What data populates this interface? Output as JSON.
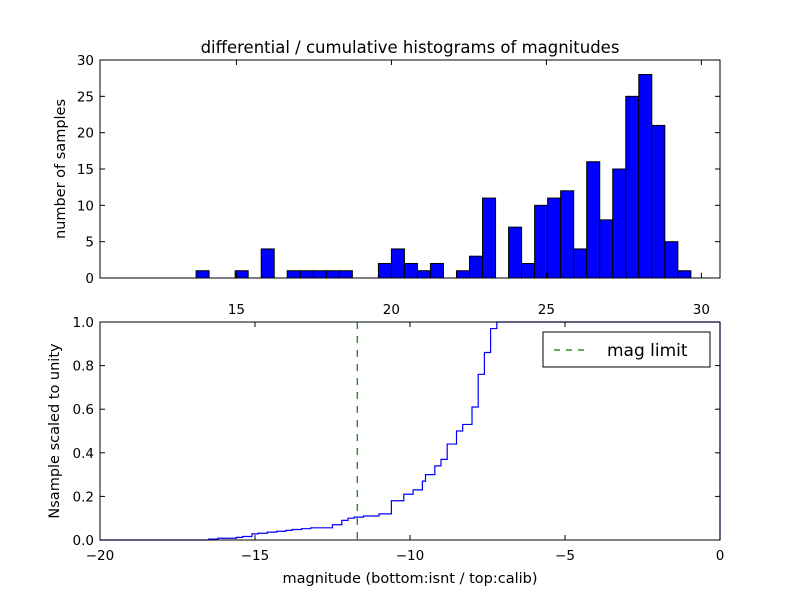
{
  "chart_data": [
    {
      "type": "bar",
      "title": "differential / cumulative histograms of magnitudes",
      "xlabel": "",
      "ylabel": "number of samples",
      "xlim": [
        10.6,
        30.6
      ],
      "ylim": [
        0,
        30
      ],
      "xticks": [
        15,
        20,
        25,
        30
      ],
      "yticks": [
        0,
        5,
        10,
        15,
        20,
        25,
        30
      ],
      "xtick_labels": [
        "15",
        "20",
        "25",
        "30"
      ],
      "ytick_labels": [
        "0",
        "5",
        "10",
        "15",
        "20",
        "25",
        "30"
      ],
      "bin_width": 0.42,
      "bar_color": "#0000ff",
      "bins": [
        {
          "x": 13.7,
          "value": 1
        },
        {
          "x": 14.96,
          "value": 1
        },
        {
          "x": 15.8,
          "value": 4
        },
        {
          "x": 16.64,
          "value": 1
        },
        {
          "x": 17.06,
          "value": 1
        },
        {
          "x": 17.48,
          "value": 1
        },
        {
          "x": 17.9,
          "value": 1
        },
        {
          "x": 18.32,
          "value": 1
        },
        {
          "x": 19.58,
          "value": 2
        },
        {
          "x": 20.0,
          "value": 4
        },
        {
          "x": 20.42,
          "value": 2
        },
        {
          "x": 20.84,
          "value": 1
        },
        {
          "x": 21.26,
          "value": 2
        },
        {
          "x": 22.1,
          "value": 1
        },
        {
          "x": 22.52,
          "value": 3
        },
        {
          "x": 22.94,
          "value": 11
        },
        {
          "x": 23.78,
          "value": 7
        },
        {
          "x": 24.2,
          "value": 2
        },
        {
          "x": 24.62,
          "value": 10
        },
        {
          "x": 25.04,
          "value": 11
        },
        {
          "x": 25.46,
          "value": 12
        },
        {
          "x": 25.88,
          "value": 4
        },
        {
          "x": 26.3,
          "value": 16
        },
        {
          "x": 26.72,
          "value": 8
        },
        {
          "x": 27.14,
          "value": 15
        },
        {
          "x": 27.56,
          "value": 25
        },
        {
          "x": 27.98,
          "value": 28
        },
        {
          "x": 28.4,
          "value": 21
        },
        {
          "x": 28.82,
          "value": 5
        },
        {
          "x": 29.24,
          "value": 1
        }
      ]
    },
    {
      "type": "line",
      "title": "",
      "xlabel": "magnitude (bottom:isnt / top:calib)",
      "ylabel": "Nsample scaled to unity",
      "xlim": [
        -20,
        0
      ],
      "ylim": [
        0,
        1.0
      ],
      "xticks": [
        -20,
        -15,
        -10,
        -5,
        0
      ],
      "yticks": [
        0.0,
        0.2,
        0.4,
        0.6,
        0.8,
        1.0
      ],
      "xtick_labels": [
        "−20",
        "−15",
        "−10",
        "−5",
        "0"
      ],
      "ytick_labels": [
        "0.0",
        "0.2",
        "0.4",
        "0.6",
        "0.8",
        "1.0"
      ],
      "legend_position": "top-right",
      "series": [
        {
          "name": "",
          "style": "step",
          "color": "#0000ff",
          "x": [
            -20,
            -16.5,
            -16.2,
            -15.6,
            -15.4,
            -15.1,
            -14.9,
            -14.6,
            -14.3,
            -14.0,
            -13.8,
            -13.5,
            -13.2,
            -12.5,
            -12.2,
            -12.0,
            -11.8,
            -11.5,
            -11.0,
            -10.6,
            -10.2,
            -9.9,
            -9.6,
            -9.5,
            -9.2,
            -9.0,
            -8.8,
            -8.5,
            -8.3,
            -8.0,
            -7.8,
            -7.6,
            -7.4,
            -7.2,
            0
          ],
          "y": [
            0.0,
            0.004,
            0.008,
            0.012,
            0.016,
            0.028,
            0.031,
            0.036,
            0.04,
            0.044,
            0.048,
            0.052,
            0.056,
            0.07,
            0.09,
            0.1,
            0.105,
            0.11,
            0.12,
            0.18,
            0.21,
            0.23,
            0.27,
            0.3,
            0.34,
            0.37,
            0.44,
            0.5,
            0.53,
            0.61,
            0.76,
            0.86,
            0.97,
            1.0,
            1.0
          ]
        },
        {
          "name": "mag limit",
          "style": "dashed-vertical",
          "color": "#008000",
          "x_value": -11.7
        }
      ]
    }
  ]
}
